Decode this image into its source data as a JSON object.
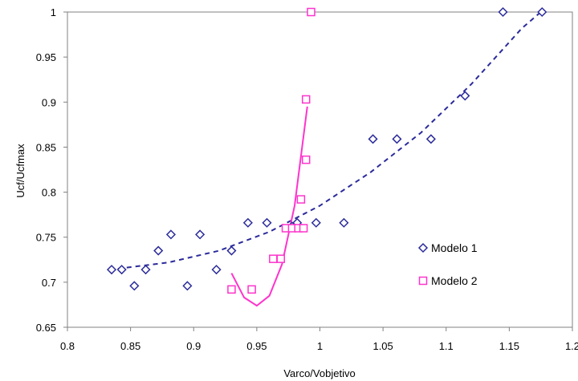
{
  "chart_data": {
    "type": "scatter",
    "title": "",
    "xlabel": "Varco/Vobjetivo",
    "ylabel": "Ucf/Ucfmax",
    "xlim": [
      0.8,
      1.2
    ],
    "ylim": [
      0.65,
      1.0
    ],
    "x_ticks": [
      "0.8",
      "0.85",
      "0.9",
      "0.95",
      "1",
      "1.05",
      "1.1",
      "1.15",
      "1.2"
    ],
    "y_ticks": [
      "0.65",
      "0.7",
      "0.75",
      "0.8",
      "0.85",
      "0.9",
      "0.95",
      "1"
    ],
    "grid": false,
    "legend_position": "right",
    "series": [
      {
        "name": "Modelo 1",
        "marker": "diamond",
        "color": "#2b2b9b",
        "trendline": "polynomial-dashed",
        "points": [
          [
            0.835,
            0.714
          ],
          [
            0.843,
            0.714
          ],
          [
            0.853,
            0.696
          ],
          [
            0.862,
            0.714
          ],
          [
            0.872,
            0.735
          ],
          [
            0.882,
            0.753
          ],
          [
            0.895,
            0.696
          ],
          [
            0.905,
            0.753
          ],
          [
            0.918,
            0.714
          ],
          [
            0.93,
            0.735
          ],
          [
            0.943,
            0.766
          ],
          [
            0.958,
            0.766
          ],
          [
            0.978,
            0.762
          ],
          [
            0.982,
            0.766
          ],
          [
            0.997,
            0.766
          ],
          [
            1.019,
            0.766
          ],
          [
            1.042,
            0.859
          ],
          [
            1.061,
            0.859
          ],
          [
            1.088,
            0.859
          ],
          [
            1.115,
            0.907
          ],
          [
            1.145,
            1.0
          ],
          [
            1.176,
            1.0
          ]
        ]
      },
      {
        "name": "Modelo 2",
        "marker": "square",
        "color": "#ff33cc",
        "trendline": "polynomial-solid",
        "points": [
          [
            0.93,
            0.692
          ],
          [
            0.946,
            0.692
          ],
          [
            0.963,
            0.726
          ],
          [
            0.969,
            0.726
          ],
          [
            0.973,
            0.76
          ],
          [
            0.978,
            0.76
          ],
          [
            0.983,
            0.76
          ],
          [
            0.985,
            0.792
          ],
          [
            0.987,
            0.76
          ],
          [
            0.989,
            0.836
          ],
          [
            0.989,
            0.903
          ],
          [
            0.993,
            1.0
          ]
        ]
      }
    ],
    "trendlines": [
      {
        "series": "Modelo 1",
        "points": [
          [
            0.84,
            0.715
          ],
          [
            0.88,
            0.722
          ],
          [
            0.92,
            0.735
          ],
          [
            0.96,
            0.756
          ],
          [
            1.0,
            0.785
          ],
          [
            1.04,
            0.822
          ],
          [
            1.08,
            0.866
          ],
          [
            1.12,
            0.92
          ],
          [
            1.16,
            0.982
          ],
          [
            1.175,
            1.0
          ]
        ]
      },
      {
        "series": "Modelo 2",
        "points": [
          [
            0.93,
            0.71
          ],
          [
            0.94,
            0.683
          ],
          [
            0.95,
            0.674
          ],
          [
            0.96,
            0.685
          ],
          [
            0.97,
            0.72
          ],
          [
            0.98,
            0.785
          ],
          [
            0.99,
            0.895
          ]
        ]
      }
    ]
  }
}
